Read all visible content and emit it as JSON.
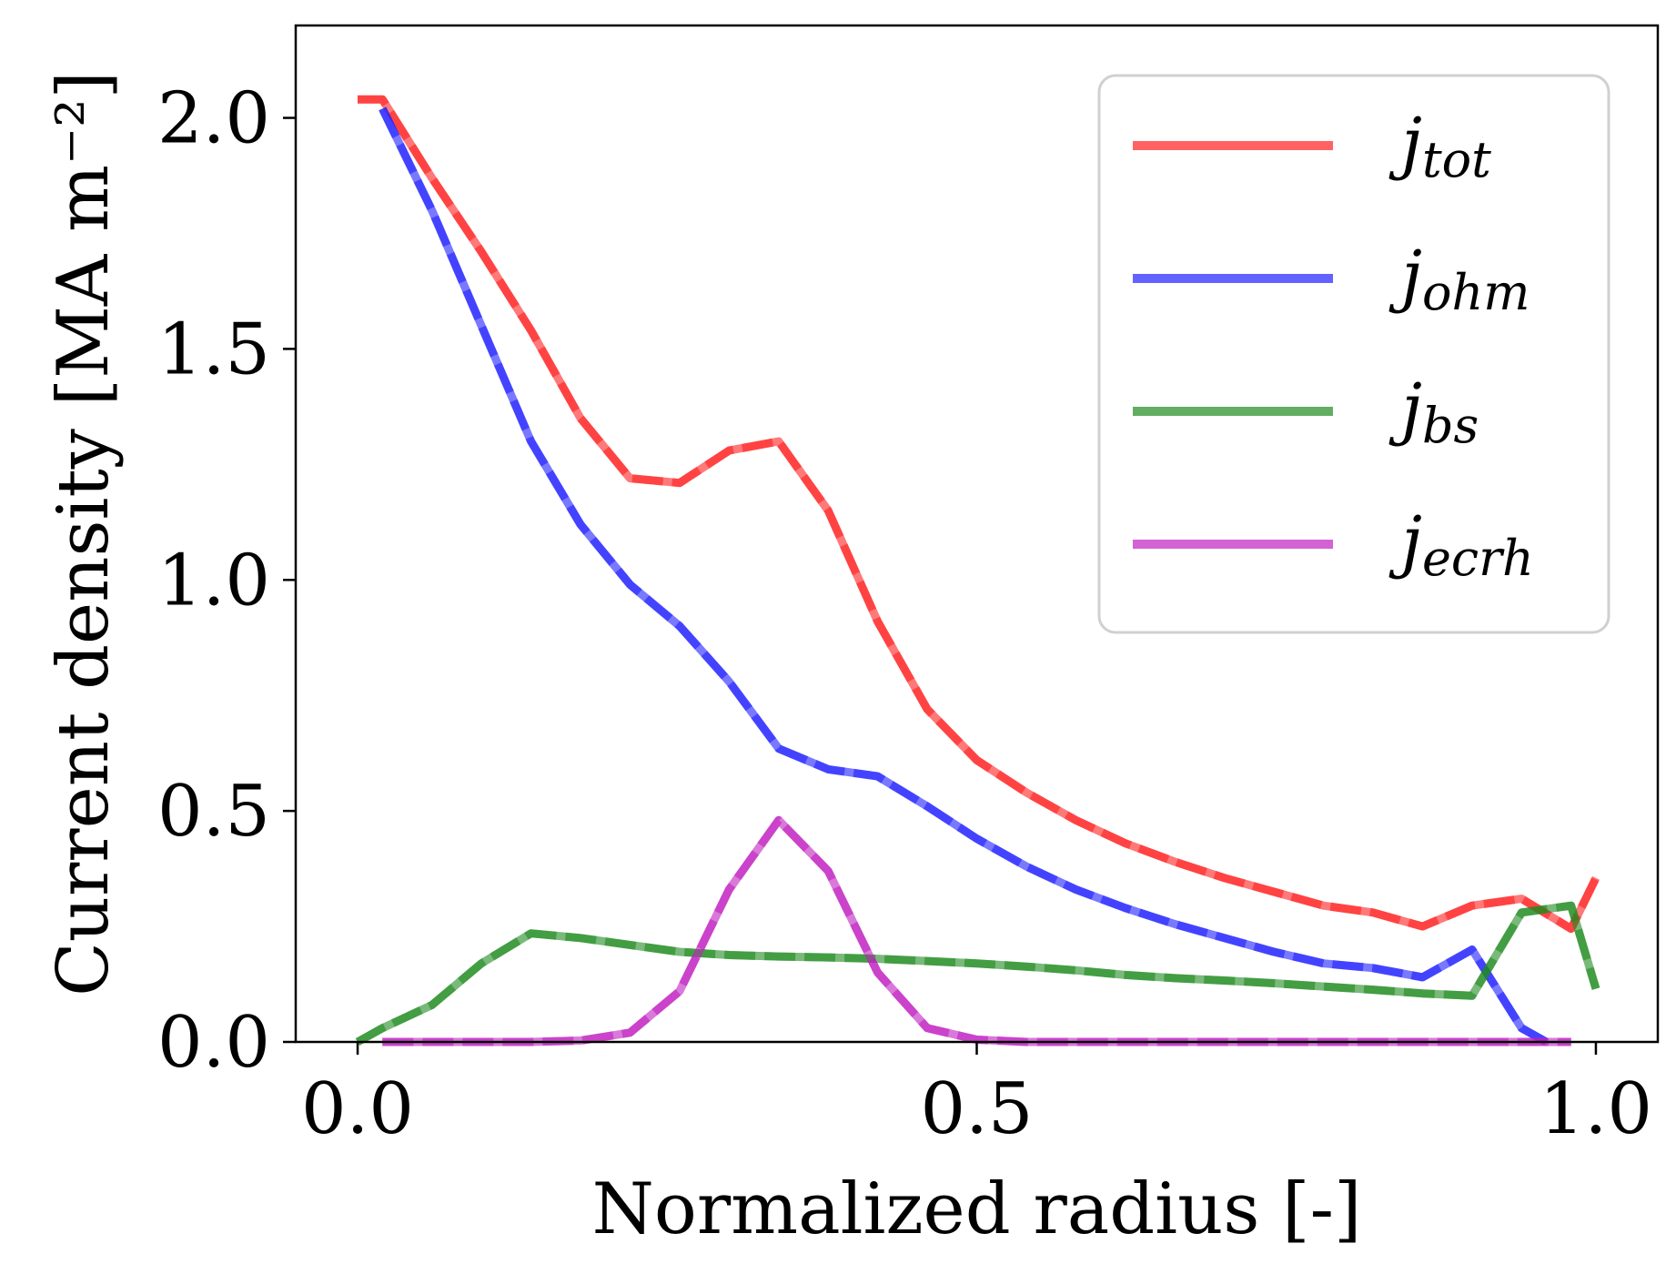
{
  "chart_data": {
    "type": "line",
    "xlabel": "Normalized radius [-]",
    "ylabel": "Current density [MA m⁻²]",
    "xlim": [
      -0.05,
      1.05
    ],
    "ylim": [
      0.0,
      2.2
    ],
    "xticks": [
      0.0,
      0.5,
      1.0
    ],
    "xtick_labels": [
      "0.0",
      "0.5",
      "1.0"
    ],
    "yticks": [
      0.0,
      0.5,
      1.0,
      1.5,
      2.0
    ],
    "ytick_labels": [
      "0.0",
      "0.5",
      "1.0",
      "1.5",
      "2.0"
    ],
    "grid": false,
    "legend_position": "top-right",
    "series": [
      {
        "name": "j_tot",
        "base": "j",
        "sub": "tot",
        "color": "#ff2020",
        "x": [
          0.0,
          0.02,
          0.06,
          0.1,
          0.14,
          0.18,
          0.22,
          0.26,
          0.3,
          0.34,
          0.38,
          0.42,
          0.46,
          0.5,
          0.54,
          0.58,
          0.62,
          0.66,
          0.7,
          0.74,
          0.78,
          0.82,
          0.86,
          0.9,
          0.94,
          0.98,
          1.0
        ],
        "y": [
          2.04,
          2.04,
          1.87,
          1.71,
          1.54,
          1.35,
          1.22,
          1.21,
          1.28,
          1.3,
          1.15,
          0.91,
          0.72,
          0.61,
          0.54,
          0.48,
          0.43,
          0.39,
          0.355,
          0.325,
          0.295,
          0.28,
          0.25,
          0.295,
          0.31,
          0.245,
          0.355
        ]
      },
      {
        "name": "j_ohm",
        "base": "j",
        "sub": "ohm",
        "color": "#2020ff",
        "x": [
          0.02,
          0.06,
          0.1,
          0.14,
          0.18,
          0.22,
          0.26,
          0.3,
          0.34,
          0.38,
          0.42,
          0.46,
          0.5,
          0.54,
          0.58,
          0.62,
          0.66,
          0.7,
          0.74,
          0.78,
          0.82,
          0.86,
          0.9,
          0.94,
          0.96
        ],
        "y": [
          2.02,
          1.8,
          1.55,
          1.3,
          1.12,
          0.99,
          0.9,
          0.78,
          0.635,
          0.59,
          0.575,
          0.51,
          0.44,
          0.38,
          0.33,
          0.29,
          0.255,
          0.225,
          0.195,
          0.17,
          0.16,
          0.14,
          0.2,
          0.03,
          0.0
        ]
      },
      {
        "name": "j_bs",
        "base": "j",
        "sub": "bs",
        "color": "#1f8a1f",
        "x": [
          0.0,
          0.02,
          0.06,
          0.1,
          0.14,
          0.18,
          0.22,
          0.26,
          0.3,
          0.34,
          0.38,
          0.42,
          0.46,
          0.5,
          0.54,
          0.58,
          0.62,
          0.66,
          0.7,
          0.74,
          0.78,
          0.82,
          0.86,
          0.9,
          0.94,
          0.98,
          1.0
        ],
        "y": [
          0.0,
          0.03,
          0.08,
          0.17,
          0.235,
          0.225,
          0.21,
          0.195,
          0.188,
          0.185,
          0.183,
          0.18,
          0.175,
          0.17,
          0.163,
          0.155,
          0.145,
          0.138,
          0.133,
          0.127,
          0.12,
          0.113,
          0.105,
          0.1,
          0.28,
          0.295,
          0.115
        ]
      },
      {
        "name": "j_ecrh",
        "base": "j",
        "sub": "ecrh",
        "color": "#c020c0",
        "x": [
          0.02,
          0.06,
          0.1,
          0.14,
          0.18,
          0.22,
          0.26,
          0.3,
          0.34,
          0.38,
          0.42,
          0.46,
          0.5,
          0.54,
          0.58,
          0.62,
          0.66,
          0.7,
          0.74,
          0.78,
          0.82,
          0.86,
          0.9,
          0.94,
          0.98
        ],
        "y": [
          0.0,
          0.0,
          0.0,
          0.0,
          0.003,
          0.02,
          0.11,
          0.33,
          0.48,
          0.37,
          0.15,
          0.03,
          0.005,
          0.0,
          0.0,
          0.0,
          0.0,
          0.0,
          0.0,
          0.0,
          0.0,
          0.0,
          0.0,
          0.0,
          0.0
        ]
      }
    ]
  }
}
